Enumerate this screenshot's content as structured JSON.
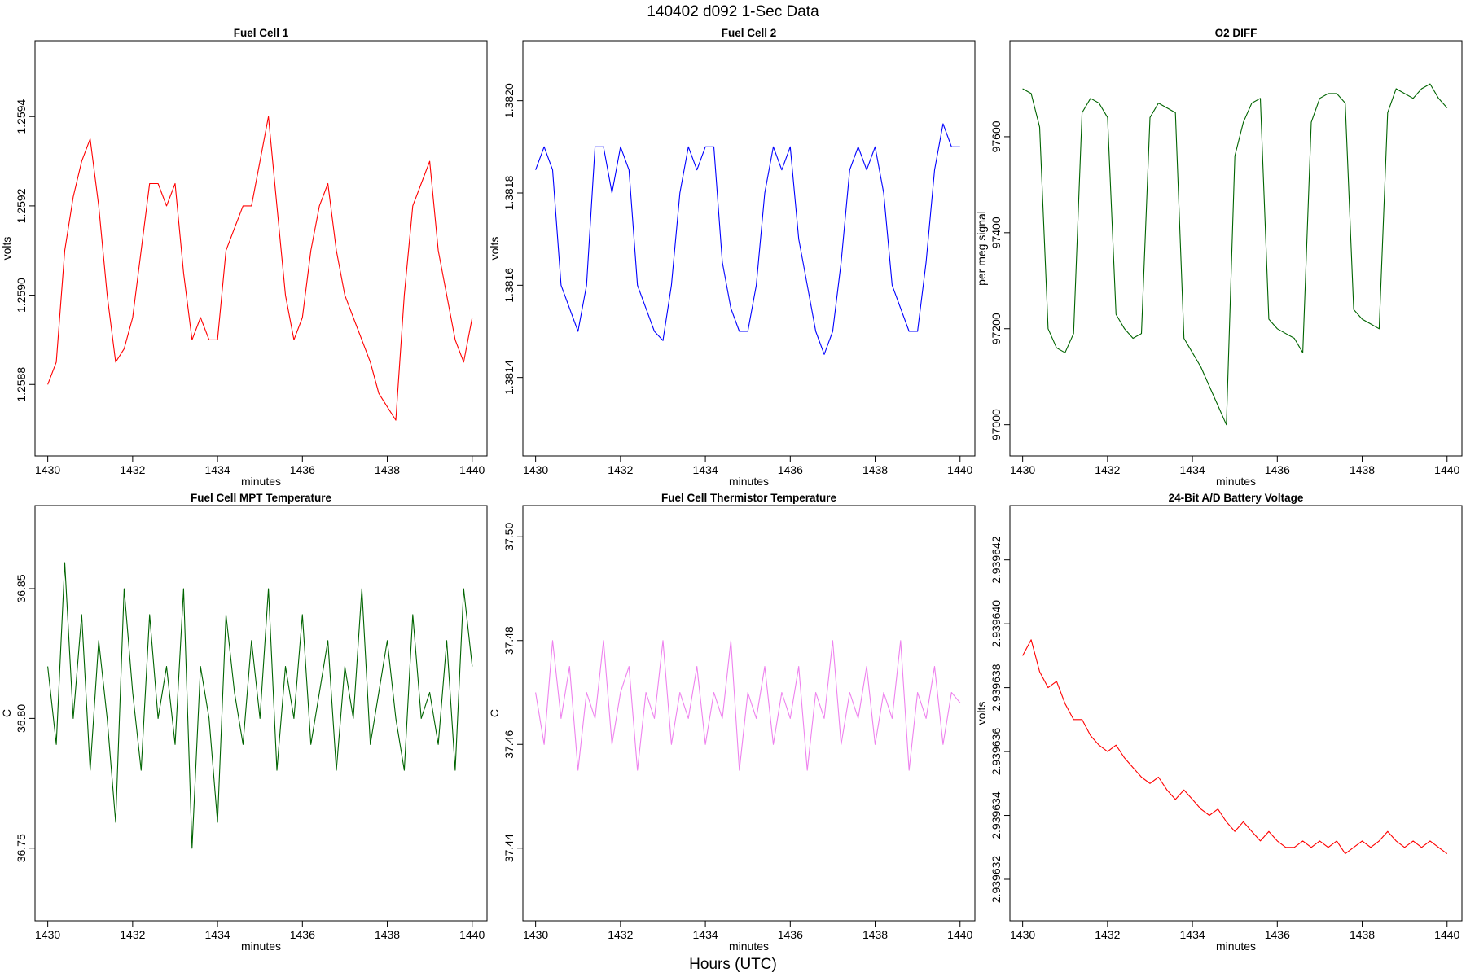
{
  "figure": {
    "title": "140402   d092   1-Sec Data",
    "bottom_label": "Hours (UTC)"
  },
  "chart_data": [
    {
      "type": "line",
      "title": "Fuel Cell 1",
      "xlabel": "minutes",
      "ylabel": "volts",
      "color": "#ff0000",
      "xlim": [
        1429.7,
        1440.35
      ],
      "ylim": [
        1.25864,
        1.25957
      ],
      "xticks": [
        1430,
        1432,
        1434,
        1436,
        1438,
        1440
      ],
      "yticks": [
        1.2588,
        1.259,
        1.2592,
        1.2594
      ],
      "ytick_labels": [
        "1.2588",
        "1.2590",
        "1.2592",
        "1.2594"
      ],
      "x": [
        1430.0,
        1430.2,
        1430.4,
        1430.6,
        1430.8,
        1431.0,
        1431.2,
        1431.4,
        1431.6,
        1431.8,
        1432.0,
        1432.2,
        1432.4,
        1432.6,
        1432.8,
        1433.0,
        1433.2,
        1433.4,
        1433.6,
        1433.8,
        1434.0,
        1434.2,
        1434.4,
        1434.6,
        1434.8,
        1435.0,
        1435.2,
        1435.4,
        1435.6,
        1435.8,
        1436.0,
        1436.2,
        1436.4,
        1436.6,
        1436.8,
        1437.0,
        1437.2,
        1437.4,
        1437.6,
        1437.8,
        1438.0,
        1438.2,
        1438.4,
        1438.6,
        1438.8,
        1439.0,
        1439.2,
        1439.4,
        1439.6,
        1439.8,
        1440.0
      ],
      "series": [
        {
          "values": [
            1.2588,
            1.25885,
            1.2591,
            1.25922,
            1.2593,
            1.25935,
            1.2592,
            1.259,
            1.25885,
            1.25888,
            1.25895,
            1.2591,
            1.25925,
            1.25925,
            1.2592,
            1.25925,
            1.25905,
            1.2589,
            1.25895,
            1.2589,
            1.2589,
            1.2591,
            1.25915,
            1.2592,
            1.2592,
            1.2593,
            1.2594,
            1.2592,
            1.259,
            1.2589,
            1.25895,
            1.2591,
            1.2592,
            1.25925,
            1.2591,
            1.259,
            1.25895,
            1.2589,
            1.25885,
            1.25878,
            1.25875,
            1.25872,
            1.259,
            1.2592,
            1.25925,
            1.2593,
            1.2591,
            1.259,
            1.2589,
            1.25885,
            1.25895
          ]
        }
      ]
    },
    {
      "type": "line",
      "title": "Fuel Cell 2",
      "xlabel": "minutes",
      "ylabel": "volts",
      "color": "#0000ff",
      "xlim": [
        1429.7,
        1440.35
      ],
      "ylim": [
        1.38123,
        1.38213
      ],
      "xticks": [
        1430,
        1432,
        1434,
        1436,
        1438,
        1440
      ],
      "yticks": [
        1.3814,
        1.3816,
        1.3818,
        1.382
      ],
      "ytick_labels": [
        "1.3814",
        "1.3816",
        "1.3818",
        "1.3820"
      ],
      "x": [
        1430.0,
        1430.2,
        1430.4,
        1430.6,
        1430.8,
        1431.0,
        1431.2,
        1431.4,
        1431.6,
        1431.8,
        1432.0,
        1432.2,
        1432.4,
        1432.6,
        1432.8,
        1433.0,
        1433.2,
        1433.4,
        1433.6,
        1433.8,
        1434.0,
        1434.2,
        1434.4,
        1434.6,
        1434.8,
        1435.0,
        1435.2,
        1435.4,
        1435.6,
        1435.8,
        1436.0,
        1436.2,
        1436.4,
        1436.6,
        1436.8,
        1437.0,
        1437.2,
        1437.4,
        1437.6,
        1437.8,
        1438.0,
        1438.2,
        1438.4,
        1438.6,
        1438.8,
        1439.0,
        1439.2,
        1439.4,
        1439.6,
        1439.8,
        1440.0
      ],
      "series": [
        {
          "values": [
            1.38185,
            1.3819,
            1.38185,
            1.3816,
            1.38155,
            1.3815,
            1.3816,
            1.3819,
            1.3819,
            1.3818,
            1.3819,
            1.38185,
            1.3816,
            1.38155,
            1.3815,
            1.38148,
            1.3816,
            1.3818,
            1.3819,
            1.38185,
            1.3819,
            1.3819,
            1.38165,
            1.38155,
            1.3815,
            1.3815,
            1.3816,
            1.3818,
            1.3819,
            1.38185,
            1.3819,
            1.3817,
            1.3816,
            1.3815,
            1.38145,
            1.3815,
            1.38165,
            1.38185,
            1.3819,
            1.38185,
            1.3819,
            1.3818,
            1.3816,
            1.38155,
            1.3815,
            1.3815,
            1.38165,
            1.38185,
            1.38195,
            1.3819,
            1.3819
          ]
        }
      ]
    },
    {
      "type": "line",
      "title": "O2 DIFF",
      "xlabel": "minutes",
      "ylabel": "per meg signal",
      "color": "#006400",
      "xlim": [
        1429.7,
        1440.35
      ],
      "ylim": [
        96935,
        97800
      ],
      "xticks": [
        1430,
        1432,
        1434,
        1436,
        1438,
        1440
      ],
      "yticks": [
        97000,
        97200,
        97400,
        97600
      ],
      "ytick_labels": [
        "97000",
        "97200",
        "97400",
        "97600"
      ],
      "x": [
        1430.0,
        1430.2,
        1430.4,
        1430.6,
        1430.8,
        1431.0,
        1431.2,
        1431.4,
        1431.6,
        1431.8,
        1432.0,
        1432.2,
        1432.4,
        1432.6,
        1432.8,
        1433.0,
        1433.2,
        1433.4,
        1433.6,
        1433.8,
        1434.0,
        1434.2,
        1434.4,
        1434.6,
        1434.8,
        1435.0,
        1435.2,
        1435.4,
        1435.6,
        1435.8,
        1436.0,
        1436.2,
        1436.4,
        1436.6,
        1436.8,
        1437.0,
        1437.2,
        1437.4,
        1437.6,
        1437.8,
        1438.0,
        1438.2,
        1438.4,
        1438.6,
        1438.8,
        1439.0,
        1439.2,
        1439.4,
        1439.6,
        1439.8,
        1440.0
      ],
      "series": [
        {
          "values": [
            97700,
            97690,
            97620,
            97200,
            97160,
            97150,
            97190,
            97650,
            97680,
            97670,
            97640,
            97230,
            97200,
            97180,
            97190,
            97640,
            97670,
            97660,
            97650,
            97180,
            97150,
            97120,
            97080,
            97040,
            97000,
            97560,
            97630,
            97670,
            97680,
            97220,
            97200,
            97190,
            97180,
            97150,
            97630,
            97680,
            97690,
            97690,
            97670,
            97240,
            97220,
            97210,
            97200,
            97650,
            97700,
            97690,
            97680,
            97700,
            97710,
            97680,
            97660
          ]
        }
      ]
    },
    {
      "type": "line",
      "title": "Fuel Cell MPT Temperature",
      "xlabel": "minutes",
      "ylabel": "C",
      "color": "#006400",
      "xlim": [
        1429.7,
        1440.35
      ],
      "ylim": [
        36.722,
        36.882
      ],
      "xticks": [
        1430,
        1432,
        1434,
        1436,
        1438,
        1440
      ],
      "yticks": [
        36.75,
        36.8,
        36.85
      ],
      "ytick_labels": [
        "36.75",
        "36.80",
        "36.85"
      ],
      "x": [
        1430.0,
        1430.2,
        1430.4,
        1430.6,
        1430.8,
        1431.0,
        1431.2,
        1431.4,
        1431.6,
        1431.8,
        1432.0,
        1432.2,
        1432.4,
        1432.6,
        1432.8,
        1433.0,
        1433.2,
        1433.4,
        1433.6,
        1433.8,
        1434.0,
        1434.2,
        1434.4,
        1434.6,
        1434.8,
        1435.0,
        1435.2,
        1435.4,
        1435.6,
        1435.8,
        1436.0,
        1436.2,
        1436.4,
        1436.6,
        1436.8,
        1437.0,
        1437.2,
        1437.4,
        1437.6,
        1437.8,
        1438.0,
        1438.2,
        1438.4,
        1438.6,
        1438.8,
        1439.0,
        1439.2,
        1439.4,
        1439.6,
        1439.8,
        1440.0
      ],
      "series": [
        {
          "values": [
            36.82,
            36.79,
            36.86,
            36.8,
            36.84,
            36.78,
            36.83,
            36.8,
            36.76,
            36.85,
            36.81,
            36.78,
            36.84,
            36.8,
            36.82,
            36.79,
            36.85,
            36.75,
            36.82,
            36.8,
            36.76,
            36.84,
            36.81,
            36.79,
            36.83,
            36.8,
            36.85,
            36.78,
            36.82,
            36.8,
            36.84,
            36.79,
            36.81,
            36.83,
            36.78,
            36.82,
            36.8,
            36.85,
            36.79,
            36.81,
            36.83,
            36.8,
            36.78,
            36.84,
            36.8,
            36.81,
            36.79,
            36.83,
            36.78,
            36.85,
            36.82
          ]
        }
      ]
    },
    {
      "type": "line",
      "title": "Fuel Cell Thermistor Temperature",
      "xlabel": "minutes",
      "ylabel": "C",
      "color": "#ee82ee",
      "xlim": [
        1429.7,
        1440.35
      ],
      "ylim": [
        37.426,
        37.506
      ],
      "xticks": [
        1430,
        1432,
        1434,
        1436,
        1438,
        1440
      ],
      "yticks": [
        37.44,
        37.46,
        37.48,
        37.5
      ],
      "ytick_labels": [
        "37.44",
        "37.46",
        "37.48",
        "37.50"
      ],
      "x": [
        1430.0,
        1430.2,
        1430.4,
        1430.6,
        1430.8,
        1431.0,
        1431.2,
        1431.4,
        1431.6,
        1431.8,
        1432.0,
        1432.2,
        1432.4,
        1432.6,
        1432.8,
        1433.0,
        1433.2,
        1433.4,
        1433.6,
        1433.8,
        1434.0,
        1434.2,
        1434.4,
        1434.6,
        1434.8,
        1435.0,
        1435.2,
        1435.4,
        1435.6,
        1435.8,
        1436.0,
        1436.2,
        1436.4,
        1436.6,
        1436.8,
        1437.0,
        1437.2,
        1437.4,
        1437.6,
        1437.8,
        1438.0,
        1438.2,
        1438.4,
        1438.6,
        1438.8,
        1439.0,
        1439.2,
        1439.4,
        1439.6,
        1439.8,
        1440.0
      ],
      "series": [
        {
          "values": [
            37.47,
            37.46,
            37.48,
            37.465,
            37.475,
            37.455,
            37.47,
            37.465,
            37.48,
            37.46,
            37.47,
            37.475,
            37.455,
            37.47,
            37.465,
            37.48,
            37.46,
            37.47,
            37.465,
            37.475,
            37.46,
            37.47,
            37.465,
            37.48,
            37.455,
            37.47,
            37.465,
            37.475,
            37.46,
            37.47,
            37.465,
            37.475,
            37.455,
            37.47,
            37.465,
            37.48,
            37.46,
            37.47,
            37.465,
            37.475,
            37.46,
            37.47,
            37.465,
            37.48,
            37.455,
            37.47,
            37.465,
            37.475,
            37.46,
            37.47,
            37.468
          ]
        }
      ]
    },
    {
      "type": "line",
      "title": "24-Bit A/D Battery Voltage",
      "xlabel": "minutes",
      "ylabel": "volts",
      "color": "#ff0000",
      "xlim": [
        1429.7,
        1440.35
      ],
      "ylim": [
        2.9396307,
        2.9396437
      ],
      "xticks": [
        1430,
        1432,
        1434,
        1436,
        1438,
        1440
      ],
      "yticks": [
        2.939632,
        2.939634,
        2.939636,
        2.939638,
        2.93964,
        2.939642
      ],
      "ytick_labels": [
        "2.939632",
        "2.939634",
        "2.939636",
        "2.939638",
        "2.939640",
        "2.939642"
      ],
      "x": [
        1430.0,
        1430.2,
        1430.4,
        1430.6,
        1430.8,
        1431.0,
        1431.2,
        1431.4,
        1431.6,
        1431.8,
        1432.0,
        1432.2,
        1432.4,
        1432.6,
        1432.8,
        1433.0,
        1433.2,
        1433.4,
        1433.6,
        1433.8,
        1434.0,
        1434.2,
        1434.4,
        1434.6,
        1434.8,
        1435.0,
        1435.2,
        1435.4,
        1435.6,
        1435.8,
        1436.0,
        1436.2,
        1436.4,
        1436.6,
        1436.8,
        1437.0,
        1437.2,
        1437.4,
        1437.6,
        1437.8,
        1438.0,
        1438.2,
        1438.4,
        1438.6,
        1438.8,
        1439.0,
        1439.2,
        1439.4,
        1439.6,
        1439.8,
        1440.0
      ],
      "series": [
        {
          "values": [
            2.939639,
            2.9396395,
            2.9396385,
            2.939638,
            2.9396382,
            2.9396375,
            2.939637,
            2.939637,
            2.9396365,
            2.9396362,
            2.939636,
            2.9396362,
            2.9396358,
            2.9396355,
            2.9396352,
            2.939635,
            2.9396352,
            2.9396348,
            2.9396345,
            2.9396348,
            2.9396345,
            2.9396342,
            2.939634,
            2.9396342,
            2.9396338,
            2.9396335,
            2.9396338,
            2.9396335,
            2.9396332,
            2.9396335,
            2.9396332,
            2.939633,
            2.939633,
            2.9396332,
            2.939633,
            2.9396332,
            2.939633,
            2.9396332,
            2.9396328,
            2.939633,
            2.9396332,
            2.939633,
            2.9396332,
            2.9396335,
            2.9396332,
            2.939633,
            2.9396332,
            2.939633,
            2.9396332,
            2.939633,
            2.9396328
          ]
        }
      ]
    }
  ]
}
